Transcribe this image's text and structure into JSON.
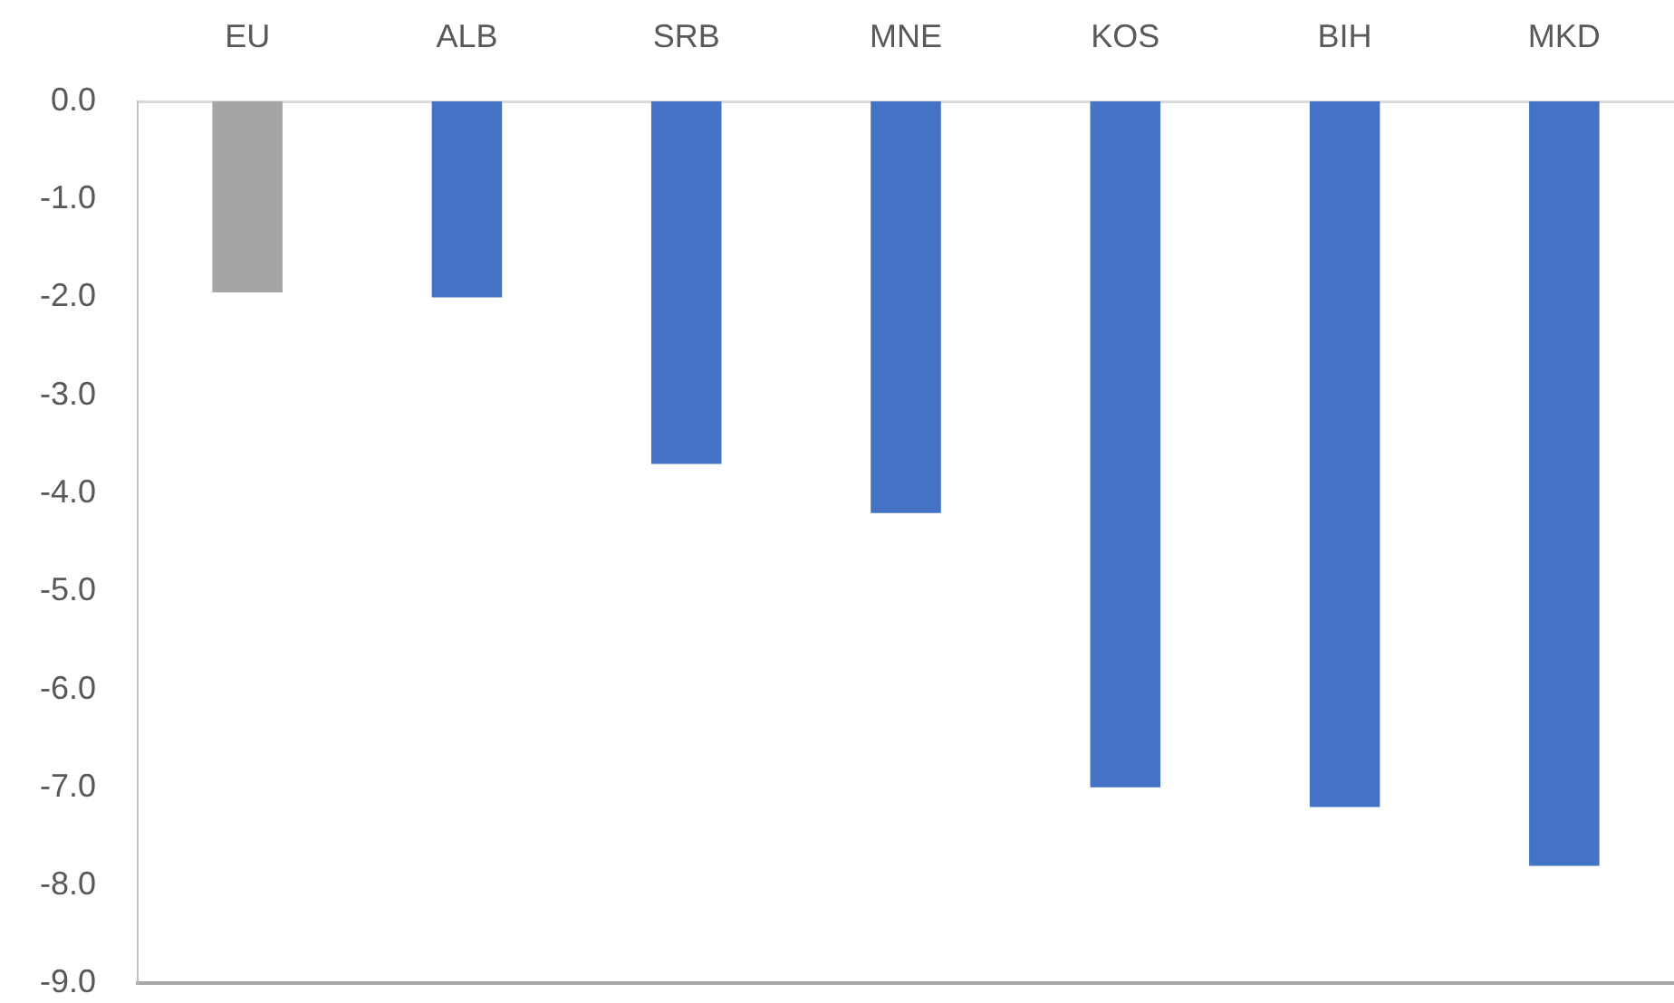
{
  "chart_data": {
    "type": "bar",
    "categories": [
      "EU",
      "ALB",
      "SRB",
      "MNE",
      "KOS",
      "BIH",
      "MKD"
    ],
    "values": [
      -1.95,
      -2.0,
      -3.7,
      -4.2,
      -7.0,
      -7.2,
      -7.8
    ],
    "colors": [
      "#a5a5a5",
      "#4472c4",
      "#4472c4",
      "#4472c4",
      "#4472c4",
      "#4472c4",
      "#4472c4"
    ],
    "ylim": [
      -9,
      0
    ],
    "yticks": [
      {
        "value": 0,
        "label": "0.0"
      },
      {
        "value": -1,
        "label": "-1.0"
      },
      {
        "value": -2,
        "label": "-2.0"
      },
      {
        "value": -3,
        "label": "-3.0"
      },
      {
        "value": -4,
        "label": "-4.0"
      },
      {
        "value": -5,
        "label": "-5.0"
      },
      {
        "value": -6,
        "label": "-6.0"
      },
      {
        "value": -7,
        "label": "-7.0"
      },
      {
        "value": -8,
        "label": "-8.0"
      },
      {
        "value": -9,
        "label": "-9.0"
      }
    ],
    "grid": false,
    "legend": false
  }
}
